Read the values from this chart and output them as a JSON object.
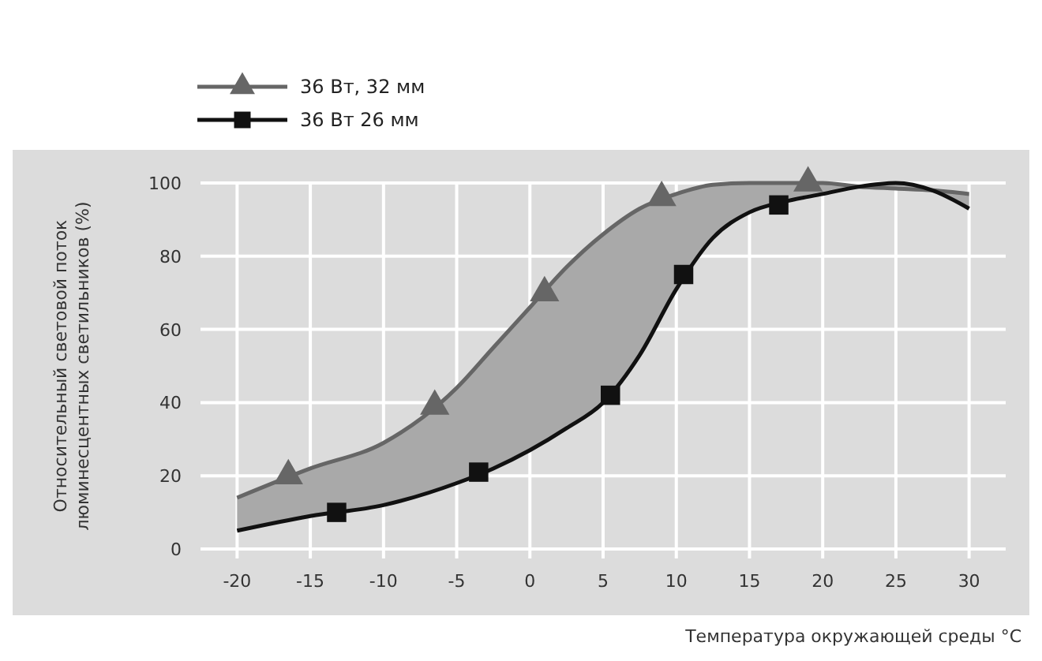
{
  "chart_data": {
    "type": "line",
    "xlabel": "Температура окружающей среды °C",
    "ylabel": "Относительный световой поток\nлюминесцентных светильников (%)",
    "xlim": [
      -22.5,
      32.5
    ],
    "ylim": [
      0,
      100
    ],
    "xticks": [
      -20,
      -15,
      -10,
      -5,
      0,
      5,
      10,
      15,
      20,
      25,
      30
    ],
    "yticks": [
      0,
      20,
      40,
      60,
      80,
      100
    ],
    "grid": true,
    "legend": "top left",
    "series": [
      {
        "color": "#666666",
        "marker": "none",
        "x": [
          -20,
          -15,
          -10,
          -5,
          -2.5,
          0,
          2.5,
          5,
          7.5,
          10,
          12.5,
          15,
          17.5,
          20,
          22.5,
          25,
          27.5,
          30
        ],
        "values": [
          14,
          22,
          29,
          44,
          55,
          66,
          77,
          86,
          93,
          97,
          99.5,
          100,
          100,
          100,
          99,
          98.5,
          98,
          97
        ],
        "lower": [
          5,
          9,
          12,
          18,
          22,
          27,
          33,
          40,
          53,
          71,
          85,
          92,
          95,
          97,
          99,
          100,
          98,
          93
        ],
        "upper": [
          14,
          22,
          29,
          44,
          55,
          66,
          77,
          86,
          93,
          97,
          99.5,
          100,
          100,
          100,
          99,
          98.5,
          98,
          97
        ]
      },
      {
        "color": "#111111",
        "marker": "none",
        "x": [
          -20,
          -15,
          -10,
          -5,
          -2.5,
          0,
          2.5,
          5,
          7.5,
          10,
          12.5,
          15,
          17.5,
          20,
          22.5,
          25,
          27.5,
          30
        ],
        "values": [
          5,
          9,
          12,
          18,
          22,
          27,
          33,
          40,
          53,
          71,
          85,
          92,
          95,
          97,
          99,
          100,
          98,
          93
        ]
      },
      {
        "type": "scatter",
        "name": "36 Вт, 32 мм",
        "color": "#666666",
        "marker": "triangle",
        "x": [
          -16.5,
          -6.5,
          1,
          9,
          19
        ],
        "values": [
          20,
          39,
          70,
          96,
          100
        ]
      },
      {
        "type": "scatter",
        "name": "36 Вт 26 мм",
        "color": "#111111",
        "marker": "square",
        "x": [
          -13.2,
          -3.5,
          5.5,
          10.5,
          17
        ],
        "values": [
          10,
          21,
          42,
          75,
          94
        ]
      }
    ]
  }
}
